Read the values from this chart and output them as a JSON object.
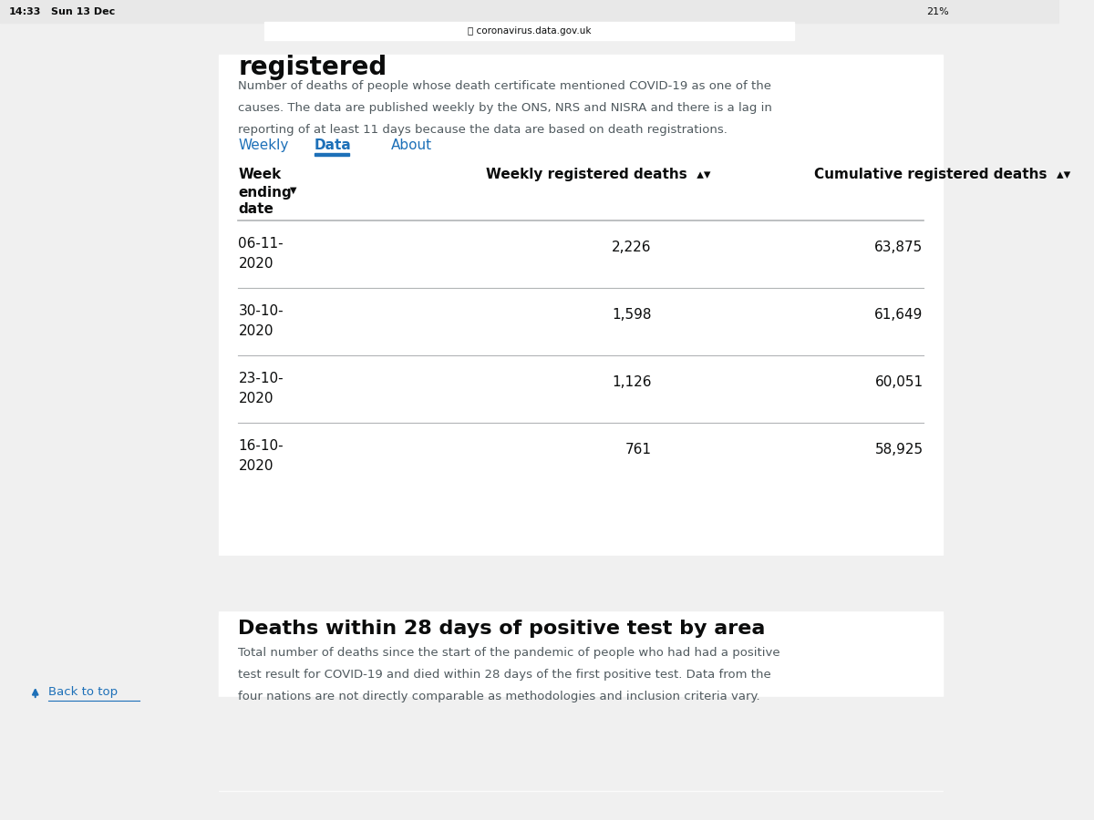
{
  "bg_color": "#f0f0f0",
  "white_bg": "#ffffff",
  "status_bar": {
    "time": "14:33",
    "day_date": "Sun 13 Dec",
    "battery": "21%",
    "url": "coronavirus.data.gov.uk"
  },
  "top_heading_partial": "registered",
  "description_text": "Number of deaths of people whose death certificate mentioned COVID-19 as one of the\ncauses. The data are published weekly by the ONS, NRS and NISRA and there is a lag in\nreporting of at least 11 days because the data are based on death registrations.",
  "tabs": [
    "Weekly",
    "Data",
    "About"
  ],
  "active_tab": "Data",
  "tab_color_active": "#1d70b8",
  "table_header_col1": "Week\nending\ndate",
  "table_header_col2": "Weekly registered deaths",
  "table_header_col3": "Cumulative registered deaths",
  "table_rows": [
    {
      "date": "06-11-\n2020",
      "weekly": "2,226",
      "cumulative": "63,875"
    },
    {
      "date": "30-10-\n2020",
      "weekly": "1,598",
      "cumulative": "61,649"
    },
    {
      "date": "23-10-\n2020",
      "weekly": "1,126",
      "cumulative": "60,051"
    },
    {
      "date": "16-10-\n2020",
      "weekly": "761",
      "cumulative": "58,925"
    }
  ],
  "section2_heading": "Deaths within 28 days of positive test by area",
  "section2_text": "Total number of deaths since the start of the pandemic of people who had had a positive\ntest result for COVID-19 and died within 28 days of the first positive test. Data from the\nfour nations are not directly comparable as methodologies and inclusion criteria vary.",
  "back_to_top": "Back to top",
  "arrow_color": "#1d70b8",
  "separator_color": "#b1b4b6",
  "text_color_dark": "#0b0c0c",
  "text_color_gray": "#505a5f"
}
